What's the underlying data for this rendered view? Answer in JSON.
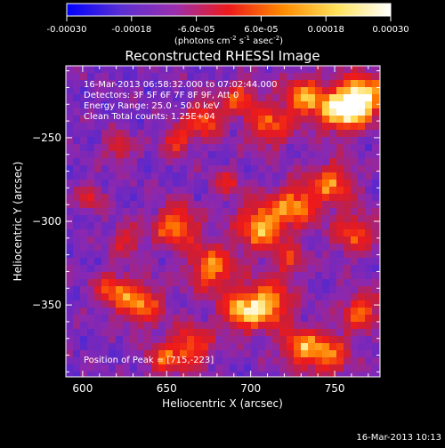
{
  "chart_data": {
    "type": "heatmap",
    "title": "Reconstructed RHESSI Image",
    "xlabel": "Heliocentric X (arcsec)",
    "ylabel": "Heliocentric Y (arcsec)",
    "xlim": [
      590,
      777
    ],
    "ylim": [
      -393,
      -207
    ],
    "xticks": [
      600,
      650,
      700,
      750
    ],
    "yticks": [
      -250,
      -300,
      -350
    ],
    "colorbar": {
      "range": [
        -0.0003,
        0.0003
      ],
      "ticks": [
        "-0.00030",
        "-0.00018",
        "-6.0e-05",
        "6.0e-05",
        "0.00018",
        "0.00030"
      ],
      "units_text": "(photons cm",
      "units_exp1": "-2",
      "units_mid": " s",
      "units_exp2": "-1",
      "units_tail": " asec",
      "units_exp3": "-2",
      "units_close": ")",
      "colors": [
        "#0000ff",
        "#5a2fd2",
        "#9a2fae",
        "#ee1a1a",
        "#ff8a00",
        "#ffe25a",
        "#ffffff"
      ]
    },
    "annotations": [
      "16-Mar-2013 06:58:32.000 to 07:02:44.000",
      "Detectors: 3F 5F 6F 7F 8F 9F, Att 0",
      "Energy Range: 25.0 - 50.0 keV",
      "Clean    Total counts: 1.25E+04"
    ],
    "peak_text": "Position of Peak = [715,-223]",
    "timestamp": "16-Mar-2013 10:13"
  }
}
